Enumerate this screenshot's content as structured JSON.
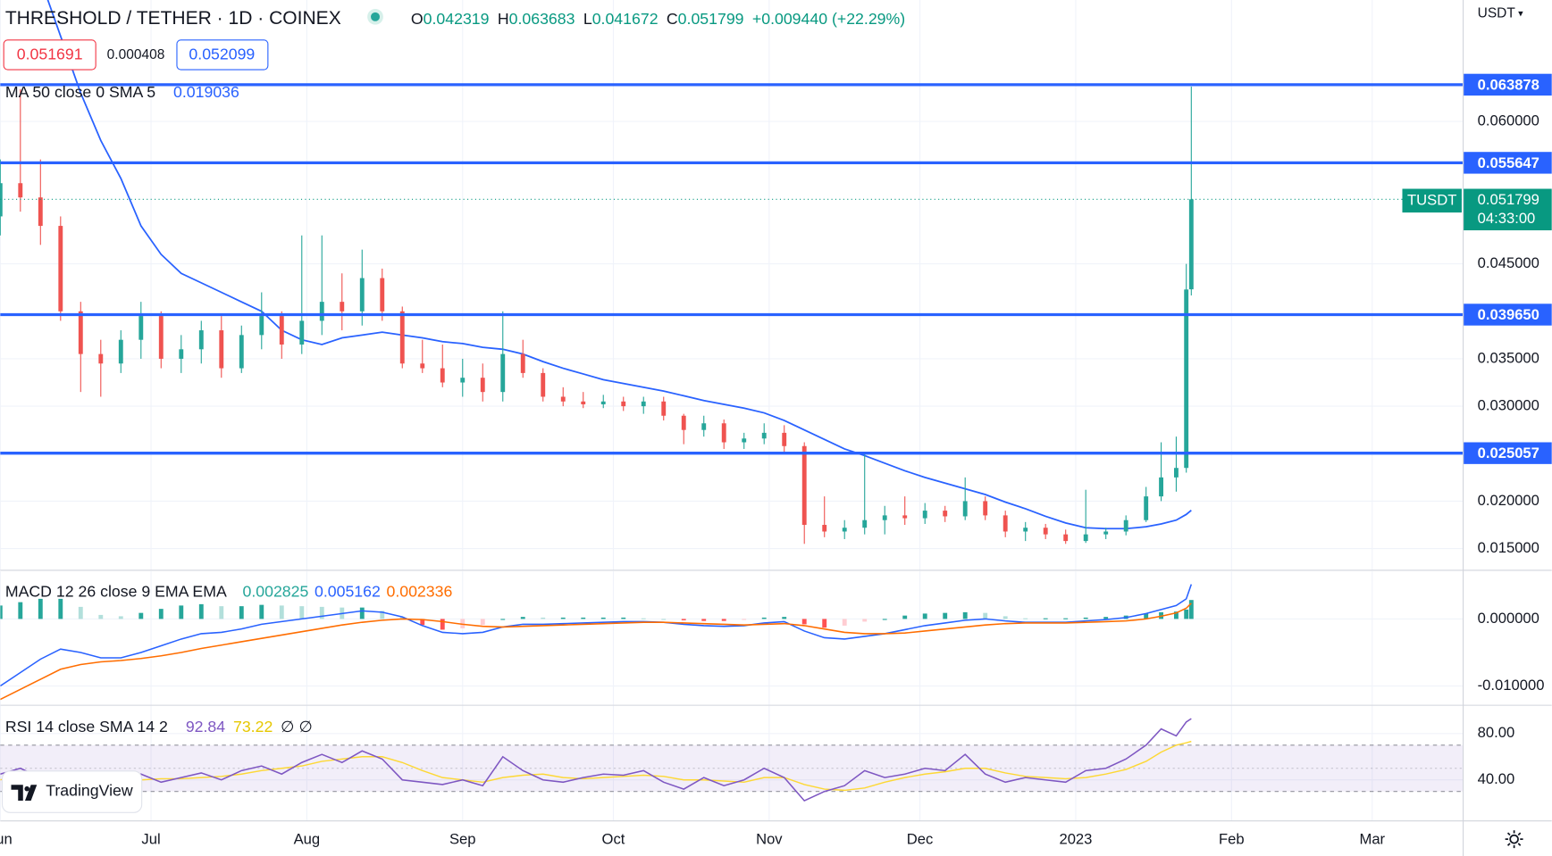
{
  "header": {
    "symbol": "THRESHOLD / TETHER · 1D · COINEX",
    "o_label": "O",
    "h_label": "H",
    "l_label": "L",
    "c_label": "C",
    "change": "+0.009440 (+22.29%)",
    "sell": "0.051691",
    "spread": "0.000408",
    "buy": "0.052099",
    "currency": "USDT",
    "ticker": "TUSDT",
    "countdown": "04:33:00",
    "logo": "TradingView"
  },
  "chart_data": [
    {
      "type": "candlestick",
      "x": [
        0,
        4,
        8,
        12,
        16,
        20,
        24,
        28,
        32,
        36,
        40,
        44,
        48,
        52,
        56,
        60,
        64,
        68,
        72,
        76,
        80,
        84,
        88,
        92,
        96,
        100,
        104,
        108,
        112,
        116,
        120,
        124,
        128,
        132,
        136,
        140,
        144,
        148,
        152,
        156,
        160,
        164,
        168,
        172,
        176,
        180,
        184,
        188,
        192,
        196,
        200,
        204,
        208,
        212,
        216,
        220,
        224,
        228,
        231,
        234,
        236,
        237
      ],
      "open": [
        0.05,
        0.0535,
        0.052,
        0.049,
        0.04,
        0.0355,
        0.0345,
        0.037,
        0.0395,
        0.035,
        0.036,
        0.038,
        0.034,
        0.0375,
        0.0395,
        0.0365,
        0.039,
        0.041,
        0.04,
        0.0435,
        0.04,
        0.0345,
        0.034,
        0.0325,
        0.033,
        0.0315,
        0.0355,
        0.0335,
        0.031,
        0.0305,
        0.0302,
        0.0305,
        0.03,
        0.0305,
        0.029,
        0.0275,
        0.0282,
        0.0262,
        0.0266,
        0.0272,
        0.0258,
        0.0175,
        0.0168,
        0.0172,
        0.018,
        0.0185,
        0.0182,
        0.019,
        0.0184,
        0.02,
        0.0185,
        0.0168,
        0.0172,
        0.0165,
        0.0158,
        0.0165,
        0.0168,
        0.018,
        0.0205,
        0.0225,
        0.0235,
        0.042319
      ],
      "high": [
        0.056,
        0.0634,
        0.056,
        0.05,
        0.041,
        0.037,
        0.038,
        0.041,
        0.04,
        0.0375,
        0.039,
        0.0395,
        0.0385,
        0.042,
        0.04,
        0.048,
        0.048,
        0.044,
        0.0465,
        0.0445,
        0.0405,
        0.037,
        0.0365,
        0.035,
        0.0345,
        0.04,
        0.037,
        0.034,
        0.032,
        0.0315,
        0.0312,
        0.031,
        0.031,
        0.031,
        0.0292,
        0.029,
        0.0286,
        0.0272,
        0.0282,
        0.028,
        0.0262,
        0.0205,
        0.018,
        0.025,
        0.0195,
        0.0205,
        0.0198,
        0.0195,
        0.0225,
        0.0205,
        0.019,
        0.0178,
        0.0176,
        0.017,
        0.0212,
        0.0172,
        0.0185,
        0.0215,
        0.0262,
        0.0268,
        0.045,
        0.063683
      ],
      "low": [
        0.048,
        0.0505,
        0.047,
        0.039,
        0.0315,
        0.031,
        0.0335,
        0.035,
        0.034,
        0.0335,
        0.0345,
        0.033,
        0.0335,
        0.036,
        0.035,
        0.0355,
        0.0375,
        0.038,
        0.0385,
        0.039,
        0.034,
        0.0335,
        0.032,
        0.031,
        0.0305,
        0.0305,
        0.033,
        0.0305,
        0.03,
        0.0298,
        0.0298,
        0.0295,
        0.0292,
        0.0285,
        0.026,
        0.0268,
        0.0255,
        0.0255,
        0.026,
        0.025,
        0.0155,
        0.0162,
        0.016,
        0.0165,
        0.0165,
        0.0175,
        0.0176,
        0.0178,
        0.018,
        0.018,
        0.0162,
        0.0158,
        0.016,
        0.0155,
        0.0156,
        0.016,
        0.0164,
        0.0178,
        0.02,
        0.021,
        0.023,
        0.041672
      ],
      "close": [
        0.0535,
        0.052,
        0.049,
        0.04,
        0.0355,
        0.0345,
        0.037,
        0.0395,
        0.035,
        0.036,
        0.038,
        0.034,
        0.0375,
        0.0395,
        0.0365,
        0.039,
        0.041,
        0.04,
        0.0435,
        0.04,
        0.0345,
        0.034,
        0.0325,
        0.033,
        0.0315,
        0.0355,
        0.0335,
        0.031,
        0.0305,
        0.0302,
        0.0305,
        0.03,
        0.0305,
        0.029,
        0.0275,
        0.0282,
        0.0262,
        0.0266,
        0.0272,
        0.0258,
        0.0175,
        0.0168,
        0.0172,
        0.018,
        0.0185,
        0.0182,
        0.019,
        0.0184,
        0.02,
        0.0185,
        0.0168,
        0.0172,
        0.0165,
        0.0158,
        0.0165,
        0.0168,
        0.018,
        0.0205,
        0.0225,
        0.0235,
        0.0423,
        0.051799
      ],
      "up_color": "#26a69a",
      "down_color": "#ef5350",
      "overlays": [
        {
          "name": "MA 50 close 0 SMA 5",
          "color": "#2962ff",
          "values": [
            0.085,
            0.08,
            0.075,
            0.069,
            0.063,
            0.058,
            0.054,
            0.049,
            0.046,
            0.044,
            0.043,
            0.042,
            0.041,
            0.04,
            0.038,
            0.037,
            0.0365,
            0.0372,
            0.0375,
            0.0378,
            0.0375,
            0.0372,
            0.0368,
            0.0366,
            0.0362,
            0.036,
            0.0355,
            0.0347,
            0.034,
            0.0334,
            0.0328,
            0.0324,
            0.032,
            0.0316,
            0.0311,
            0.0306,
            0.0302,
            0.0298,
            0.0293,
            0.0285,
            0.0275,
            0.0265,
            0.0255,
            0.0248,
            0.024,
            0.0232,
            0.0225,
            0.0219,
            0.0213,
            0.0207,
            0.0199,
            0.0192,
            0.0184,
            0.0177,
            0.0172,
            0.0171,
            0.0171,
            0.0173,
            0.0176,
            0.018,
            0.0186,
            0.019036
          ]
        }
      ],
      "hlines": [
        {
          "value": 0.063878,
          "label": "0.063878"
        },
        {
          "value": 0.055647,
          "label": "0.055647"
        },
        {
          "value": 0.03965,
          "label": "0.039650"
        },
        {
          "value": 0.025057,
          "label": "0.025057"
        }
      ],
      "hline_color": "#2962ff",
      "last_price_color": "#089981",
      "xlim": [
        0,
        291
      ],
      "xticks": [
        {
          "value": 0,
          "label": "Jun"
        },
        {
          "value": 30,
          "label": "Jul"
        },
        {
          "value": 61,
          "label": "Aug"
        },
        {
          "value": 92,
          "label": "Sep"
        },
        {
          "value": 122,
          "label": "Oct"
        },
        {
          "value": 153,
          "label": "Nov"
        },
        {
          "value": 183,
          "label": "Dec"
        },
        {
          "value": 214,
          "label": "2023"
        },
        {
          "value": 245,
          "label": "Feb"
        },
        {
          "value": 273,
          "label": "Mar"
        }
      ],
      "ylim": [
        0.01271,
        0.0728
      ],
      "yticks": [
        {
          "value": 0.06,
          "label": "0.060000"
        },
        {
          "value": 0.045,
          "label": "0.045000"
        },
        {
          "value": 0.035,
          "label": "0.035000"
        },
        {
          "value": 0.03,
          "label": "0.030000"
        },
        {
          "value": 0.02,
          "label": "0.020000"
        },
        {
          "value": 0.015,
          "label": "0.015000"
        }
      ],
      "grid": true
    },
    {
      "type": "macd",
      "title": "MACD 12 26 close 9 EMA EMA",
      "histogram": [
        0.002,
        0.0025,
        0.003,
        0.003,
        0.0018,
        0.0006,
        0.0004,
        0.0009,
        0.0015,
        0.002,
        0.0022,
        0.0019,
        0.0019,
        0.0021,
        0.002,
        0.0019,
        0.0018,
        0.0017,
        0.0017,
        0.0012,
        0.0003,
        -0.0009,
        -0.0016,
        -0.0014,
        -0.0009,
        0,
        0.0003,
        0.0002,
        0.0002,
        0.0002,
        0.0002,
        0.0002,
        0.0001,
        0,
        -0.0002,
        -0.0003,
        -0.0003,
        -0.0001,
        0.0002,
        0.0003,
        -0.0008,
        -0.0013,
        -0.001,
        -0.0004,
        0,
        0.0005,
        0.0008,
        0.0009,
        0.001,
        0.0009,
        0.0004,
        0.0001,
        0.0001,
        0.0001,
        0.0002,
        0.0003,
        0.0005,
        0.0008,
        0.001,
        0.0011,
        0.0014,
        0.002825
      ],
      "macd": [
        -0.01,
        -0.008,
        -0.006,
        -0.0045,
        -0.005,
        -0.0058,
        -0.0058,
        -0.005,
        -0.004,
        -0.003,
        -0.0022,
        -0.002,
        -0.0015,
        -0.0008,
        -0.0004,
        0,
        0.0004,
        0.0008,
        0.0012,
        0.001,
        0.0003,
        -0.001,
        -0.002,
        -0.0022,
        -0.002,
        -0.0012,
        -0.0008,
        -0.0008,
        -0.0007,
        -0.0006,
        -0.0005,
        -0.0004,
        -0.0004,
        -0.0005,
        -0.0008,
        -0.001,
        -0.0011,
        -0.001,
        -0.0006,
        -0.0004,
        -0.0018,
        -0.0028,
        -0.003,
        -0.0026,
        -0.0022,
        -0.0016,
        -0.001,
        -0.0006,
        -0.0002,
        0,
        -0.0003,
        -0.0005,
        -0.0005,
        -0.0005,
        -0.0003,
        -0.0001,
        0.0002,
        0.0008,
        0.0014,
        0.002,
        0.003,
        0.005162
      ],
      "signal": [
        -0.012,
        -0.0105,
        -0.009,
        -0.0075,
        -0.0068,
        -0.0064,
        -0.0062,
        -0.0059,
        -0.0055,
        -0.005,
        -0.0044,
        -0.0039,
        -0.0034,
        -0.0029,
        -0.0024,
        -0.0019,
        -0.0014,
        -0.0009,
        -0.0005,
        -0.0002,
        0,
        -0.0001,
        -0.0004,
        -0.0008,
        -0.0011,
        -0.0012,
        -0.0011,
        -0.001,
        -0.0009,
        -0.0008,
        -0.0007,
        -0.0006,
        -0.0005,
        -0.0005,
        -0.0006,
        -0.0007,
        -0.0008,
        -0.0009,
        -0.0008,
        -0.0007,
        -0.001,
        -0.0015,
        -0.002,
        -0.0022,
        -0.0022,
        -0.0021,
        -0.0018,
        -0.0015,
        -0.0012,
        -0.0009,
        -0.0007,
        -0.0006,
        -0.0006,
        -0.0006,
        -0.0005,
        -0.0004,
        -0.0003,
        0,
        0.0004,
        0.0009,
        0.0016,
        0.002336
      ],
      "histogram_colors": [
        "#26a69a",
        "#b2dfdb",
        "#ff5252",
        "#ffcdd2"
      ],
      "macd_color": "#2962ff",
      "signal_color": "#ff6d00",
      "ylim": [
        -0.0128,
        0.0071
      ],
      "yticks": [
        {
          "value": 0,
          "label": "0.000000"
        },
        {
          "value": -0.01,
          "label": "-0.010000"
        }
      ]
    },
    {
      "type": "rsi",
      "title": "RSI 14 close SMA 14 2",
      "rsi": [
        45,
        50,
        42,
        32,
        28,
        34,
        40,
        45,
        38,
        42,
        46,
        40,
        48,
        52,
        45,
        55,
        62,
        55,
        65,
        58,
        40,
        38,
        36,
        40,
        35,
        60,
        48,
        40,
        38,
        42,
        45,
        44,
        48,
        38,
        32,
        42,
        35,
        40,
        50,
        42,
        22,
        30,
        35,
        48,
        42,
        45,
        50,
        48,
        62,
        45,
        38,
        42,
        40,
        38,
        48,
        50,
        58,
        70,
        84,
        78,
        90,
        92.84
      ],
      "sma": [
        40,
        44,
        45,
        42,
        38,
        36,
        37,
        40,
        41,
        41,
        42,
        43,
        45,
        48,
        50,
        52,
        56,
        58,
        60,
        60,
        55,
        48,
        42,
        40,
        38,
        42,
        44,
        45,
        42,
        41,
        42,
        43,
        44,
        43,
        40,
        40,
        39,
        38,
        42,
        42,
        36,
        32,
        31,
        33,
        38,
        42,
        45,
        47,
        50,
        50,
        46,
        43,
        42,
        41,
        42,
        45,
        49,
        56,
        64,
        70,
        72,
        73.22
      ],
      "na_labels": "∅ ∅",
      "rsi_color": "#7e57c2",
      "sma_color": "#fdd835",
      "levels": [
        70,
        50,
        30
      ],
      "ylim": [
        5,
        104
      ],
      "yticks": [
        {
          "value": 80,
          "label": "80.00"
        },
        {
          "value": 40,
          "label": "40.00"
        }
      ]
    }
  ]
}
